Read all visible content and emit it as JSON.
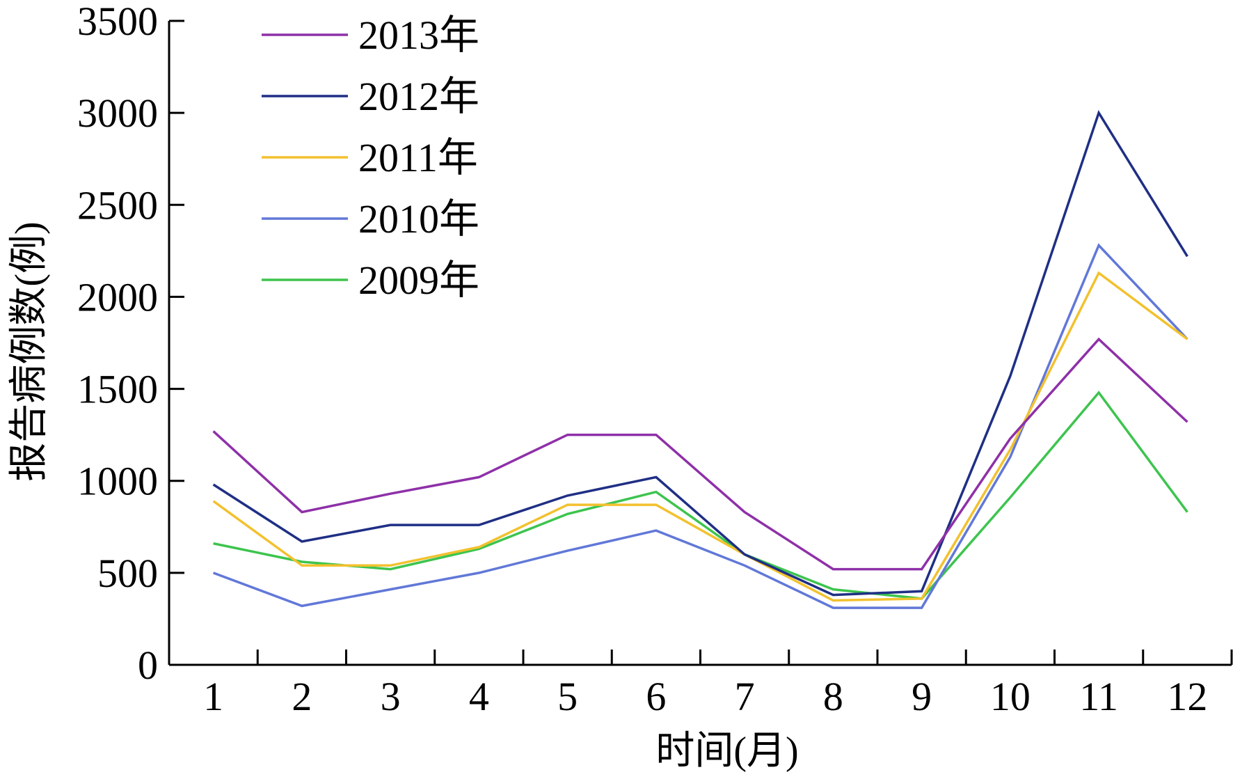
{
  "chart_data": {
    "type": "line",
    "title": "",
    "xlabel": "时间(月)",
    "ylabel": "报告病例数(例)",
    "categories": [
      "1",
      "2",
      "3",
      "4",
      "5",
      "6",
      "7",
      "8",
      "9",
      "10",
      "11",
      "12"
    ],
    "ylim": [
      0,
      3500
    ],
    "yticks": [
      0,
      500,
      1000,
      1500,
      2000,
      2500,
      3000,
      3500
    ],
    "y_tick_labels": [
      "0",
      "500",
      "1000",
      "1500",
      "2000",
      "2500",
      "3000",
      "3500"
    ],
    "grid": false,
    "legend_position": "top-left",
    "series": [
      {
        "name": "2013年",
        "color": "#8E30A8",
        "values": [
          1270,
          830,
          930,
          1020,
          1250,
          1250,
          830,
          520,
          520,
          1230,
          1770,
          1320
        ]
      },
      {
        "name": "2012年",
        "color": "#1F2F85",
        "values": [
          980,
          670,
          760,
          760,
          920,
          1020,
          600,
          380,
          400,
          1570,
          3000,
          2220
        ]
      },
      {
        "name": "2011年",
        "color": "#F2C12E",
        "values": [
          890,
          540,
          540,
          640,
          870,
          870,
          600,
          350,
          360,
          1170,
          2130,
          1770
        ]
      },
      {
        "name": "2010年",
        "color": "#6178D8",
        "values": [
          500,
          320,
          410,
          500,
          620,
          730,
          540,
          310,
          310,
          1130,
          2280,
          1770
        ]
      },
      {
        "name": "2009年",
        "color": "#3DC44E",
        "values": [
          660,
          560,
          520,
          630,
          820,
          940,
          600,
          410,
          360,
          910,
          1480,
          830
        ]
      }
    ]
  }
}
